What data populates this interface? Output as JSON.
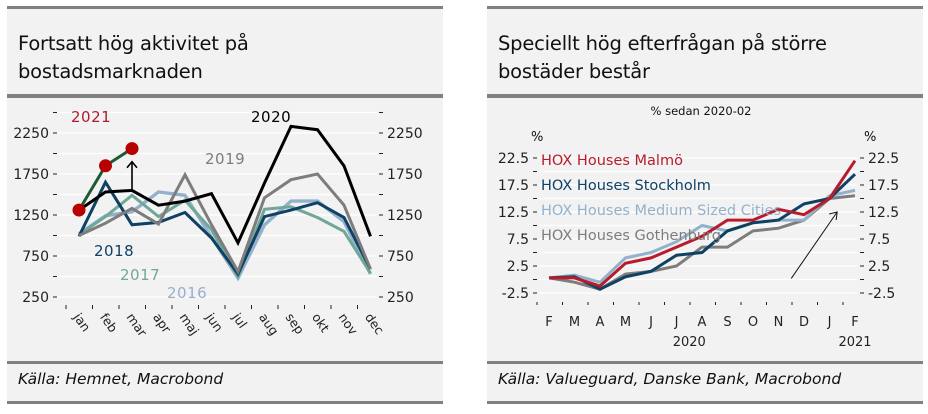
{
  "panels": {
    "left": {
      "title_line1": "Fortsatt hög aktivitet på",
      "title_line2": "bostadsmarknaden",
      "source": "Källa: Hemnet, Macrobond"
    },
    "right": {
      "title_line1": "Speciellt hög efterfrågan på större",
      "title_line2": "bostäder består",
      "source": "Källa: Valueguard, Danske Bank, Macrobond"
    }
  },
  "chart_data": [
    {
      "type": "line",
      "title": "Fortsatt hög aktivitet på bostadsmarknaden",
      "xlabel": "",
      "ylabel": "",
      "categories": [
        "jan",
        "feb",
        "mar",
        "apr",
        "maj",
        "jun",
        "jul",
        "aug",
        "sep",
        "okt",
        "nov",
        "dec"
      ],
      "ylim": [
        0,
        2500
      ],
      "yticks": [
        250,
        750,
        1250,
        1750,
        2250
      ],
      "ytick_labels": [
        "250",
        "750",
        "1250",
        "1750",
        "2250"
      ],
      "grid": true,
      "legend": "inline-labels",
      "series": [
        {
          "name": "2016",
          "color": "#94b1cc",
          "values": [
            1020,
            1240,
            1290,
            1530,
            1490,
            980,
            480,
            1130,
            1420,
            1420,
            1170,
            530
          ]
        },
        {
          "name": "2017",
          "color": "#6fa898",
          "values": [
            1010,
            1230,
            1490,
            1230,
            1430,
            1070,
            500,
            1320,
            1350,
            1220,
            1050,
            540
          ]
        },
        {
          "name": "2018",
          "color": "#0e4164",
          "values": [
            990,
            1650,
            1130,
            1160,
            1280,
            970,
            530,
            1230,
            1310,
            1400,
            1220,
            590
          ]
        },
        {
          "name": "2019",
          "color": "#7d7d7d",
          "values": [
            1000,
            1150,
            1330,
            1140,
            1740,
            1130,
            560,
            1460,
            1680,
            1750,
            1370,
            590
          ]
        },
        {
          "name": "2020",
          "color": "#000000",
          "values": [
            1310,
            1530,
            1550,
            1370,
            1420,
            1510,
            910,
            1640,
            2330,
            2290,
            1850,
            990
          ]
        },
        {
          "name": "2021",
          "color": "#1e5b35",
          "marker_color": "#b80000",
          "values": [
            1310,
            1850,
            2060
          ]
        }
      ],
      "series_labels": [
        {
          "text": "2021",
          "color": "#b01c2e"
        },
        {
          "text": "2020",
          "color": "#000000"
        },
        {
          "text": "2019",
          "color": "#7d7d7d"
        },
        {
          "text": "2018",
          "color": "#0e4164"
        },
        {
          "text": "2017",
          "color": "#6fa898"
        },
        {
          "text": "2016",
          "color": "#94b1cc"
        }
      ],
      "annotations": [
        {
          "type": "arrow",
          "direction": "up",
          "at_category": "mar"
        }
      ]
    },
    {
      "type": "line",
      "title": "Speciellt hög efterfrågan på större bostäder består",
      "subtitle": "% sedan 2020-02",
      "xlabel": "",
      "ylabel": "%",
      "ylabel_right": "%",
      "categories": [
        "F",
        "M",
        "A",
        "M",
        "J",
        "J",
        "A",
        "S",
        "O",
        "N",
        "D",
        "J",
        "F"
      ],
      "year_labels": [
        {
          "text": "2020",
          "at_index": 5.5
        },
        {
          "text": "2021",
          "at_index": 12
        }
      ],
      "ylim": [
        -5,
        25
      ],
      "yticks": [
        -2.5,
        2.5,
        7.5,
        12.5,
        17.5,
        22.5
      ],
      "ytick_labels": [
        "-2.5",
        "2.5",
        "7.5",
        "12.5",
        "17.5",
        "22.5"
      ],
      "grid": true,
      "legend": "top-left",
      "series": [
        {
          "name": "HOX Houses Malmö",
          "color": "#b81c2c",
          "values": [
            0.3,
            0.3,
            -1.2,
            3.0,
            4.0,
            6.0,
            8.0,
            11.0,
            11.0,
            13.0,
            12.0,
            15.0,
            22.0
          ]
        },
        {
          "name": "HOX Houses Stockholm",
          "color": "#0e4164",
          "values": [
            0.3,
            0.5,
            -1.8,
            0.5,
            1.5,
            4.5,
            5.0,
            9.0,
            10.5,
            11.0,
            14.0,
            15.0,
            19.5
          ]
        },
        {
          "name": "HOX Houses Medium Sized Cities",
          "color": "#94b1cc",
          "values": [
            0.3,
            0.8,
            -0.5,
            4.0,
            5.0,
            7.0,
            10.0,
            9.0,
            10.5,
            11.0,
            11.0,
            15.5,
            16.5
          ]
        },
        {
          "name": "HOX Houses Gothenburg",
          "color": "#7d7d7d",
          "values": [
            0.3,
            -0.5,
            -1.8,
            1.0,
            1.5,
            2.5,
            6.0,
            6.0,
            9.0,
            9.5,
            11.0,
            15.0,
            15.5
          ]
        }
      ],
      "annotations": [
        {
          "type": "arrow",
          "direction": "up-right",
          "from_category_index": 9.5,
          "to_category_index": 11.3
        }
      ]
    }
  ]
}
